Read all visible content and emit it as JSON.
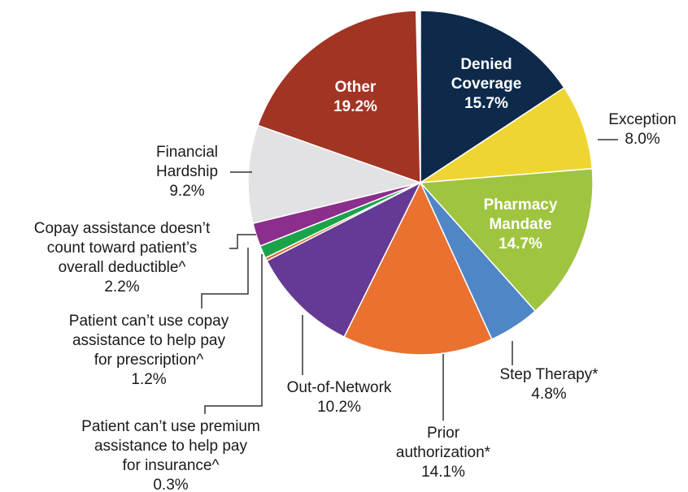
{
  "chart_data": {
    "type": "pie",
    "labels": [
      [
        "Denied",
        "Coverage"
      ],
      [
        "Exception"
      ],
      [
        "Pharmacy",
        "Mandate"
      ],
      [
        "Step Therapy*"
      ],
      [
        "Prior",
        "authorization*"
      ],
      [
        "Out-of-Network"
      ],
      [
        "Patient can’t use premium",
        "assistance to help pay",
        "for insurance^"
      ],
      [
        "Patient can’t use copay",
        "assistance to help pay",
        "for prescription^"
      ],
      [
        "Copay assistance doesn’t",
        "count toward patient’s",
        "overall deductible^"
      ],
      [
        "Financial",
        "Hardship"
      ],
      [
        "Other"
      ]
    ],
    "values": [
      15.7,
      8.0,
      14.7,
      4.8,
      14.1,
      10.2,
      0.3,
      1.2,
      2.2,
      9.2,
      19.2
    ],
    "value_labels": [
      "15.7%",
      "8.0%",
      "14.7%",
      "4.8%",
      "14.1%",
      "10.2%",
      "0.3%",
      "1.2%",
      "2.2%",
      "9.2%",
      "19.2%"
    ],
    "colors": [
      "#0d2a4a",
      "#efd532",
      "#9fc43f",
      "#4f86c6",
      "#ea7130",
      "#643a94",
      "#e8692e",
      "#1aa34a",
      "#8b2e8c",
      "#e2e2e4",
      "#a23424"
    ]
  }
}
